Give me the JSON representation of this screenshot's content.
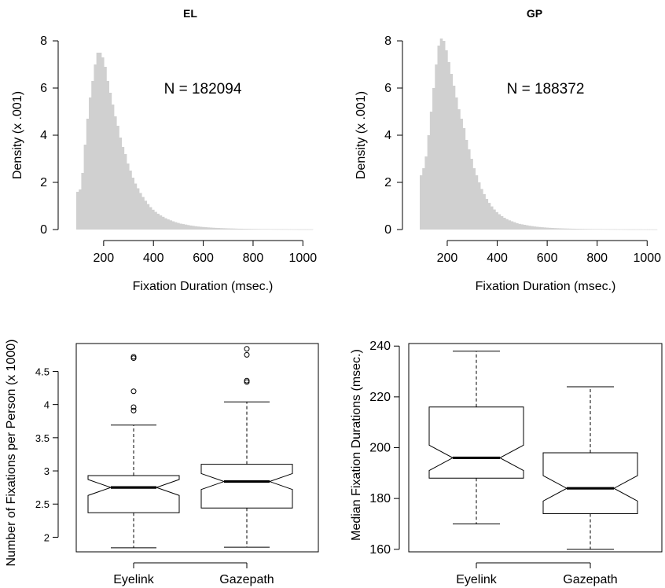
{
  "chart_data": [
    {
      "type": "histogram",
      "title": "EL",
      "xlabel": "Fixation Duration (msec.)",
      "ylabel": "Density (x .001)",
      "annotation": "N = 182094",
      "xlim": [
        90,
        1040
      ],
      "ylim": [
        0,
        8
      ],
      "xticks": [
        "200",
        "400",
        "600",
        "800",
        "1000"
      ],
      "yticks": [
        "0",
        "2",
        "4",
        "6",
        "8"
      ],
      "bar_color": "#d0d0d0",
      "bin_width": 10,
      "bin_start": 95,
      "values": [
        1.6,
        1.7,
        2.4,
        3.6,
        4.7,
        5.6,
        6.3,
        7.0,
        7.5,
        7.5,
        7.3,
        6.9,
        6.3,
        5.8,
        5.3,
        4.8,
        4.4,
        3.9,
        3.5,
        3.2,
        2.8,
        2.5,
        2.2,
        1.95,
        1.75,
        1.55,
        1.38,
        1.22,
        1.08,
        0.95,
        0.84,
        0.75,
        0.67,
        0.6,
        0.54,
        0.48,
        0.43,
        0.39,
        0.35,
        0.31,
        0.28,
        0.25,
        0.23,
        0.21,
        0.19,
        0.17,
        0.155,
        0.14,
        0.128,
        0.117,
        0.107,
        0.098,
        0.09,
        0.083,
        0.076,
        0.07,
        0.065,
        0.06,
        0.056,
        0.052,
        0.048,
        0.045,
        0.042,
        0.039,
        0.036,
        0.034,
        0.032,
        0.03,
        0.028,
        0.026,
        0.025,
        0.023,
        0.022,
        0.021,
        0.02,
        0.019,
        0.018,
        0.017,
        0.016,
        0.015,
        0.015,
        0.014,
        0.013,
        0.013,
        0.012,
        0.012,
        0.011,
        0.011,
        0.01,
        0.01,
        0.01,
        0.009,
        0.009,
        0.009
      ]
    },
    {
      "type": "histogram",
      "title": "GP",
      "xlabel": "Fixation Duration (msec.)",
      "ylabel": "Density (x .001)",
      "annotation": "N = 188372",
      "xlim": [
        90,
        1040
      ],
      "ylim": [
        0,
        8
      ],
      "xticks": [
        "200",
        "400",
        "600",
        "800",
        "1000"
      ],
      "yticks": [
        "0",
        "2",
        "4",
        "6",
        "8"
      ],
      "bar_color": "#d0d0d0",
      "bin_width": 10,
      "bin_start": 95,
      "values": [
        2.3,
        2.6,
        3.1,
        4.0,
        5.0,
        6.0,
        7.0,
        7.8,
        8.1,
        8.0,
        7.6,
        7.1,
        6.6,
        6.1,
        5.6,
        5.1,
        4.7,
        4.3,
        3.8,
        3.4,
        3.0,
        2.6,
        2.3,
        2.0,
        1.72,
        1.5,
        1.3,
        1.13,
        0.98,
        0.85,
        0.74,
        0.65,
        0.57,
        0.5,
        0.44,
        0.39,
        0.35,
        0.31,
        0.27,
        0.24,
        0.22,
        0.2,
        0.18,
        0.16,
        0.145,
        0.13,
        0.118,
        0.107,
        0.097,
        0.088,
        0.08,
        0.073,
        0.067,
        0.061,
        0.056,
        0.052,
        0.048,
        0.044,
        0.041,
        0.038,
        0.035,
        0.033,
        0.031,
        0.029,
        0.027,
        0.025,
        0.024,
        0.022,
        0.021,
        0.02,
        0.019,
        0.018,
        0.017,
        0.016,
        0.015,
        0.014,
        0.014,
        0.013,
        0.012,
        0.012,
        0.011,
        0.011,
        0.01,
        0.01,
        0.01,
        0.009,
        0.009,
        0.009,
        0.008,
        0.008,
        0.008,
        0.008,
        0.007,
        0.007
      ]
    },
    {
      "type": "boxplot",
      "notched": true,
      "ylabel": "Number of Fixations per Person (x 1000)",
      "categories": [
        "Eyelink",
        "Gazepath"
      ],
      "ylim": [
        1.78,
        4.92
      ],
      "yticks": [
        2,
        2.5,
        3,
        3.5,
        4,
        4.5
      ],
      "ytick_labels": [
        "2",
        "2.5",
        "3",
        "3.5",
        "4",
        "4.5"
      ],
      "boxes": [
        {
          "name": "Eyelink",
          "whisker_low": 1.84,
          "q1": 2.37,
          "median": 2.75,
          "q3": 2.93,
          "whisker_high": 3.69,
          "notch_low": 2.63,
          "notch_high": 2.87,
          "outliers": [
            3.91,
            3.96,
            4.2,
            4.7,
            4.72
          ]
        },
        {
          "name": "Gazepath",
          "whisker_low": 1.85,
          "q1": 2.44,
          "median": 2.84,
          "q3": 3.1,
          "whisker_high": 4.04,
          "notch_low": 2.72,
          "notch_high": 2.96,
          "outliers": [
            4.34,
            4.36,
            4.75,
            4.84
          ]
        }
      ]
    },
    {
      "type": "boxplot",
      "notched": true,
      "ylabel": "Median Fixation Durations (msec.)",
      "categories": [
        "Eyelink",
        "Gazepath"
      ],
      "ylim": [
        159,
        241
      ],
      "yticks": [
        160,
        180,
        200,
        220,
        240
      ],
      "ytick_labels": [
        "160",
        "180",
        "200",
        "220",
        "240"
      ],
      "boxes": [
        {
          "name": "Eyelink",
          "whisker_low": 170,
          "q1": 188,
          "median": 196,
          "q3": 216,
          "whisker_high": 238,
          "notch_low": 191,
          "notch_high": 201,
          "outliers": []
        },
        {
          "name": "Gazepath",
          "whisker_low": 160,
          "q1": 174,
          "median": 184,
          "q3": 198,
          "whisker_high": 224,
          "notch_low": 179,
          "notch_high": 189,
          "outliers": []
        }
      ]
    }
  ]
}
